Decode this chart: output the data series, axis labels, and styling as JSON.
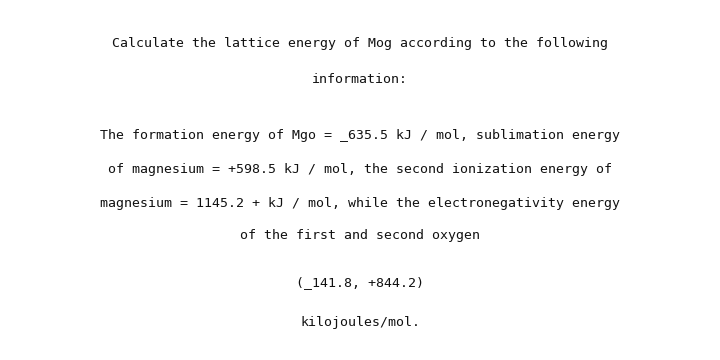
{
  "background_color": "#ffffff",
  "title_line1": "Calculate the lattice energy of Mog according to the following",
  "title_line2": "information:",
  "body_line1": "The formation energy of Mgo = _635.5 kJ / mol, sublimation energy",
  "body_line2": "of magnesium = +598.5 kJ / mol, the second ionization energy of",
  "body_line3": "magnesium = 1145.2 + kJ / mol, while the electronegativity energy",
  "body_line4": "of the first and second oxygen",
  "values_line": "(_141.8, +844.2)",
  "unit_line": "kilojoules/mol.",
  "title_fontsize": 9.5,
  "body_fontsize": 9.5,
  "font_family": "monospace",
  "text_color": "#111111"
}
